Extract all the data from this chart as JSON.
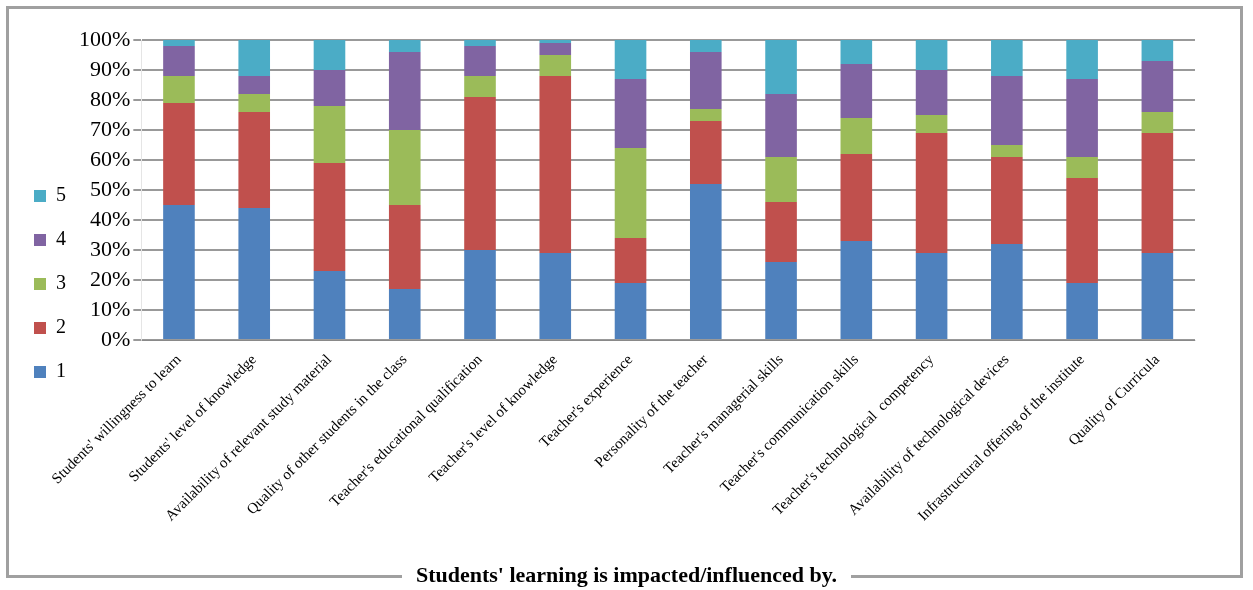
{
  "chart_data": {
    "type": "bar",
    "title": "Students' learning is impacted/influenced by.",
    "stacked": true,
    "legend": "left",
    "grid": "y",
    "categories": [
      "Students' willingness to learn",
      "Students' level of knowledge",
      "Availability of relevant study material",
      "Quality of other students in the class",
      "Teacher's educational qualification",
      "Teacher's level of knowledge",
      "Teacher's experience",
      "Personality of the teacher",
      "Teacher's managerial skills",
      "Teacher's communication skills",
      "Teacher's technological  competency",
      "Availability of technological devices",
      "Infrastructural offering of the institute",
      "Quality of Curricula"
    ],
    "ylim": [
      0,
      100
    ],
    "yticks": [
      {
        "value": 0,
        "label": "0%"
      },
      {
        "value": 10,
        "label": "10%"
      },
      {
        "value": 20,
        "label": "20%"
      },
      {
        "value": 30,
        "label": "30%"
      },
      {
        "value": 40,
        "label": "40%"
      },
      {
        "value": 50,
        "label": "50%"
      },
      {
        "value": 60,
        "label": "60%"
      },
      {
        "value": 70,
        "label": "70%"
      },
      {
        "value": 80,
        "label": "80%"
      },
      {
        "value": 90,
        "label": "90%"
      },
      {
        "value": 100,
        "label": "100%"
      }
    ],
    "series": [
      {
        "name": "1",
        "color": "#4f81bd",
        "values": [
          45,
          44,
          23,
          17,
          30,
          29,
          19,
          52,
          26,
          33,
          29,
          32,
          19,
          29
        ]
      },
      {
        "name": "2",
        "color": "#c0504d",
        "values": [
          34,
          32,
          36,
          28,
          51,
          59,
          15,
          21,
          20,
          29,
          40,
          29,
          35,
          40
        ]
      },
      {
        "name": "3",
        "color": "#9bbb59",
        "values": [
          9,
          6,
          19,
          25,
          7,
          7,
          30,
          4,
          15,
          12,
          6,
          4,
          7,
          7
        ]
      },
      {
        "name": "4",
        "color": "#8064a2",
        "values": [
          10,
          6,
          12,
          26,
          10,
          4,
          23,
          19,
          21,
          18,
          15,
          23,
          26,
          17
        ]
      },
      {
        "name": "5",
        "color": "#4bacc6",
        "values": [
          2,
          12,
          10,
          4,
          2,
          1,
          13,
          4,
          18,
          8,
          10,
          12,
          13,
          7
        ]
      }
    ]
  }
}
